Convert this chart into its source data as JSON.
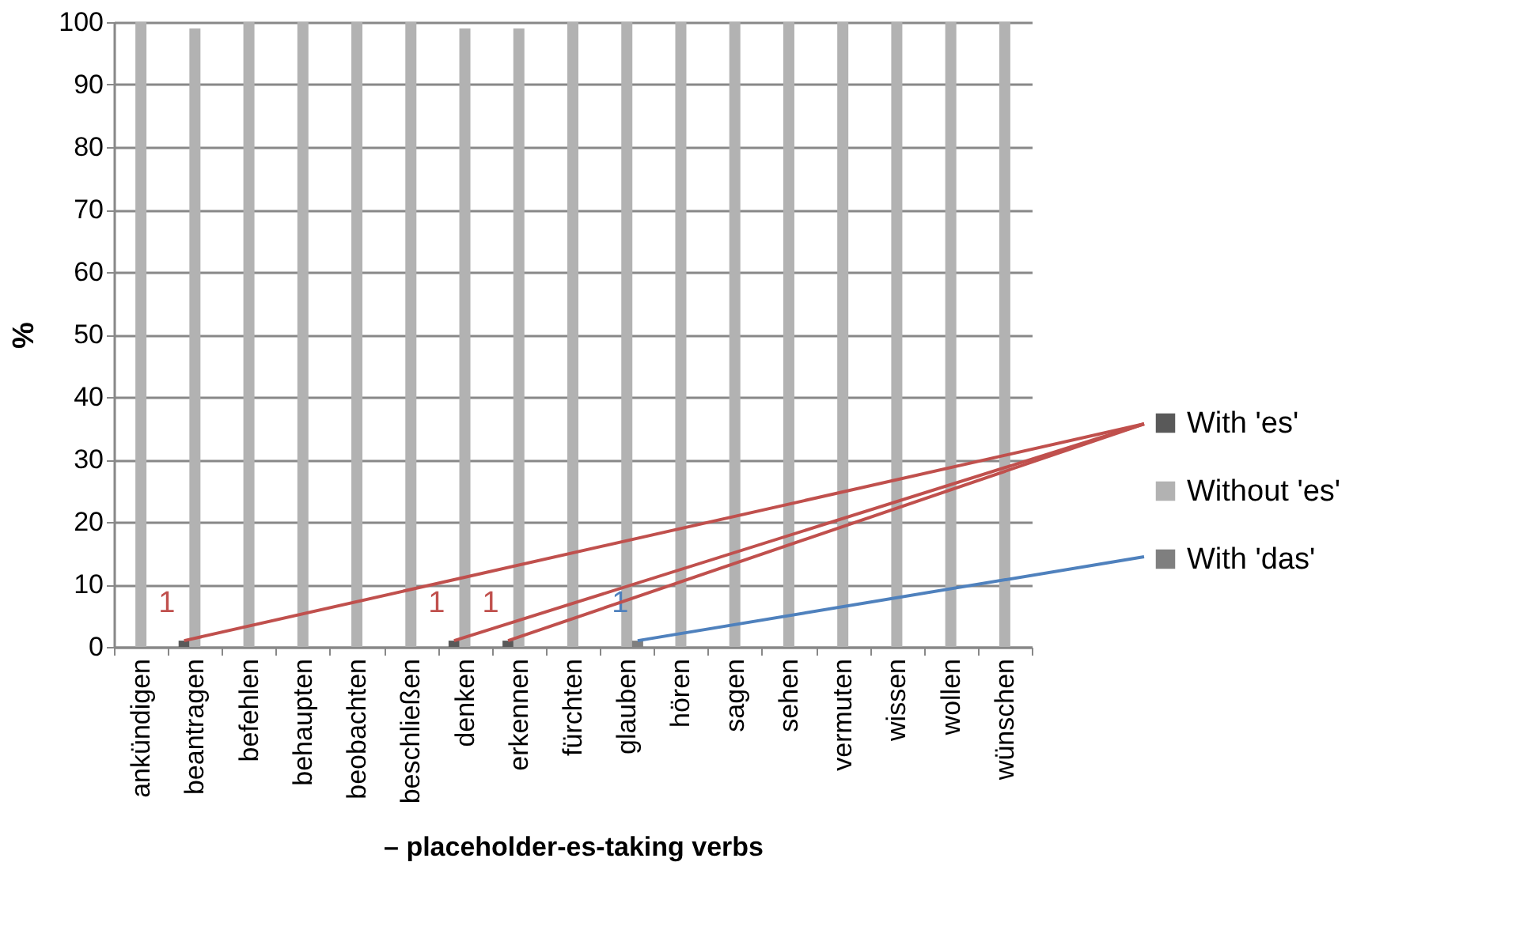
{
  "chart_data": {
    "type": "bar",
    "xlabel": "– placeholder-es-taking verbs",
    "ylabel": "%",
    "categories": [
      "ankündigen",
      "beantragen",
      "befehlen",
      "behaupten",
      "beobachten",
      "beschließen",
      "denken",
      "erkennen",
      "fürchten",
      "glauben",
      "hören",
      "sagen",
      "sehen",
      "vermuten",
      "wissen",
      "wollen",
      "wünschen"
    ],
    "series": [
      {
        "name": "With 'es'",
        "color": "#595959",
        "values": [
          0,
          1,
          0,
          0,
          0,
          0,
          1,
          1,
          0,
          0,
          0,
          0,
          0,
          0,
          0,
          0,
          0
        ],
        "value_labels": [
          null,
          "1",
          null,
          null,
          null,
          null,
          "1",
          "1",
          null,
          null,
          null,
          null,
          null,
          null,
          null,
          null,
          null
        ]
      },
      {
        "name": "Without 'es'",
        "color": "#b2b2b2",
        "values": [
          100,
          99,
          100,
          100,
          100,
          100,
          99,
          99,
          100,
          100,
          100,
          100,
          100,
          100,
          100,
          100,
          100
        ]
      },
      {
        "name": "With 'das'",
        "color": "#7f7f7f",
        "values": [
          0,
          0,
          0,
          0,
          0,
          0,
          0,
          0,
          0,
          1,
          0,
          0,
          0,
          0,
          0,
          0,
          0
        ],
        "value_labels": [
          null,
          null,
          null,
          null,
          null,
          null,
          null,
          null,
          null,
          "1",
          null,
          null,
          null,
          null,
          null,
          null,
          null
        ]
      }
    ],
    "ylim": [
      0,
      100
    ],
    "yticks": [
      0,
      10,
      20,
      30,
      40,
      50,
      60,
      70,
      80,
      90,
      100
    ],
    "grid": "y",
    "legend": "right"
  }
}
